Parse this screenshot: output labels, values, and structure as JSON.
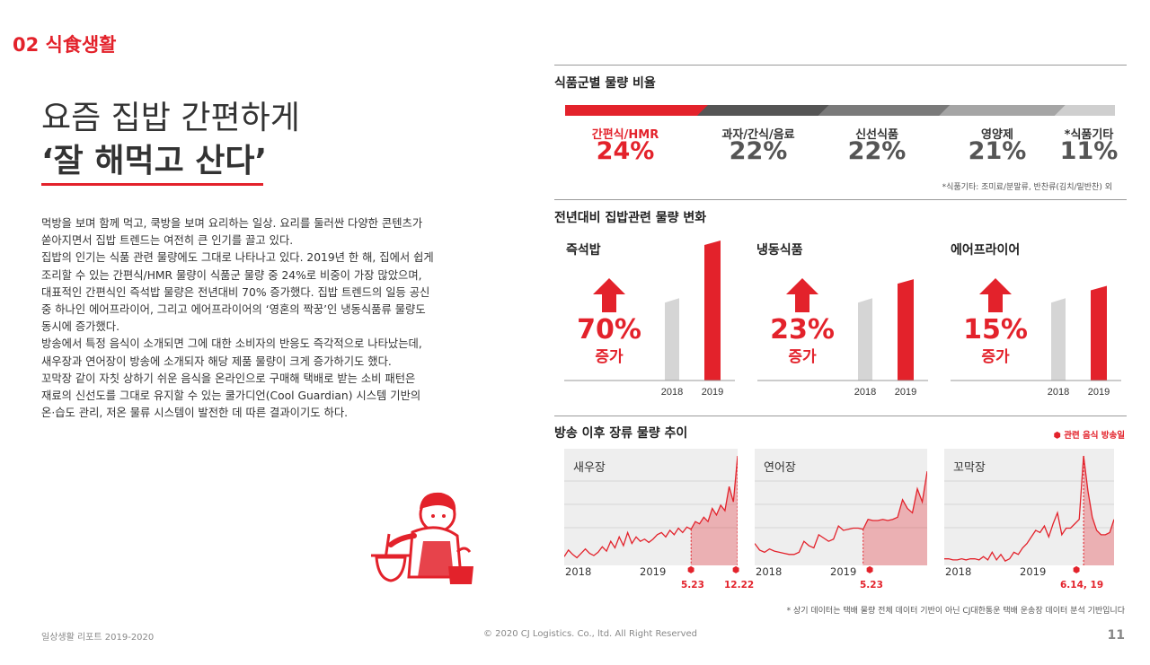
{
  "section": {
    "number": "02",
    "title": "식食생활"
  },
  "headline": {
    "line1": "요즘 집밥 간편하게",
    "line2": "‘잘 해먹고 산다’"
  },
  "body": [
    "먹방을 보며 함께 먹고, 쿡방을 보며 요리하는 일상. 요리를 둘러싼 다양한 콘텐츠가",
    "쏟아지면서 집밥 트렌드는 여전히 큰 인기를 끌고 있다.",
    "집밥의 인기는 식품 관련 물량에도 그대로 나타나고 있다. 2019년 한 해, 집에서 쉽게",
    "조리할 수 있는 간편식/HMR 물량이 식품군 물량 중 24%로 비중이 가장 많았으며,",
    "대표적인 간편식인 즉석밥 물량은 전년대비 70% 증가했다. 집밥 트렌드의 일등 공신",
    "중 하나인 에어프라이어, 그리고 에어프라이어의 ‘영혼의 짝꿍’인 냉동식품류 물량도",
    "동시에 증가했다.",
    "방송에서 특정 음식이 소개되면 그에 대한 소비자의 반응도 즉각적으로 나타났는데,",
    "새우장과 연어장이 방송에 소개되자 해당 제품 물량이 크게 증가하기도 했다.",
    "꼬막장 같이 자칫 상하기 쉬운 음식을 온라인으로 구매해 택배로 받는 소비 패턴은",
    "재료의 신선도를 그대로 유지할 수 있는 쿨가디언(Cool Guardian) 시스템 기반의",
    "온·습도 관리, 저온 물류 시스템이 발전한 데 따른 결과이기도 하다."
  ],
  "chart_data": [
    {
      "type": "bar",
      "orientation": "stacked-horizontal",
      "title": "식품군별 물량 비율",
      "categories": [
        "간편식/HMR",
        "과자/간식/음료",
        "신선식품",
        "영양제",
        "*식품기타"
      ],
      "values": [
        24,
        22,
        22,
        21,
        11
      ],
      "value_labels": [
        "24%",
        "22%",
        "22%",
        "21%",
        "11%"
      ],
      "colors": [
        "#e3222b",
        "#555555",
        "#7a7a7a",
        "#a5a5a5",
        "#cfcfcf"
      ],
      "footnote": "*식품기타: 조미료/분말류, 반찬류(김치/밑반찬) 외"
    },
    {
      "type": "bar",
      "title": "전년대비 집밥관련 물량 변화",
      "categories": [
        "2018",
        "2019"
      ],
      "increase_label": "증가",
      "groups": [
        {
          "name": "즉석밥",
          "change": "70%",
          "values": [
            100,
            170
          ]
        },
        {
          "name": "냉동식품",
          "change": "23%",
          "values": [
            100,
            123
          ]
        },
        {
          "name": "에어프라이어",
          "change": "15%",
          "values": [
            100,
            115
          ]
        }
      ]
    },
    {
      "type": "area",
      "title": "방송 이후 장류 물량 추이",
      "legend": "관련 음식 방송일",
      "x_ticks": [
        "2018",
        "2019"
      ],
      "ylim": [
        0,
        100
      ],
      "series": [
        {
          "name": "새우장",
          "values": [
            8,
            14,
            10,
            7,
            11,
            15,
            11,
            9,
            12,
            17,
            13,
            22,
            16,
            26,
            18,
            30,
            20,
            26,
            22,
            24,
            21,
            24,
            28,
            30,
            26,
            32,
            28,
            34,
            30,
            35,
            33,
            40,
            38,
            44,
            40,
            52,
            46,
            55,
            50,
            72,
            58,
            100
          ],
          "highlight_from": 30,
          "markers": [
            30,
            41
          ],
          "marker_labels": [
            "5.23",
            "12.22"
          ]
        },
        {
          "name": "연어장",
          "values": [
            20,
            14,
            12,
            15,
            13,
            12,
            11,
            10,
            10,
            12,
            22,
            18,
            16,
            28,
            25,
            22,
            24,
            36,
            32,
            33,
            34,
            34,
            33,
            42,
            41,
            41,
            42,
            41,
            42,
            44,
            60,
            52,
            48,
            70,
            58,
            86
          ],
          "highlight_from": 22,
          "markers": [
            22
          ],
          "marker_labels": [
            "5.23"
          ]
        },
        {
          "name": "꼬막장",
          "values": [
            6,
            6,
            5,
            5,
            6,
            5,
            6,
            6,
            5,
            8,
            5,
            12,
            5,
            10,
            4,
            6,
            12,
            10,
            16,
            20,
            26,
            32,
            30,
            36,
            26,
            38,
            48,
            28,
            34,
            34,
            38,
            42,
            100,
            68,
            44,
            32,
            28,
            28,
            30,
            42
          ],
          "highlight_from": 32,
          "markers": [
            32
          ],
          "marker_labels": [
            "6.14, 19"
          ]
        }
      ],
      "footnote": "* 상기 데이터는 택배 물량 전체 데이터 기반이 아닌 CJ대한통운 택배 운송장 데이터 분석 기반입니다"
    }
  ],
  "footer": {
    "report": "일상생활 리포트 2019-2020",
    "copyright": "© 2020 CJ Logistics. Co., ltd. All Right Reserved",
    "page": "11"
  },
  "colors": {
    "accent": "#e3222b",
    "grey_bar": "#d5d5d5",
    "panel_bg": "#eeeeee"
  },
  "illustration": "cook-mixing-bowl-illustration"
}
